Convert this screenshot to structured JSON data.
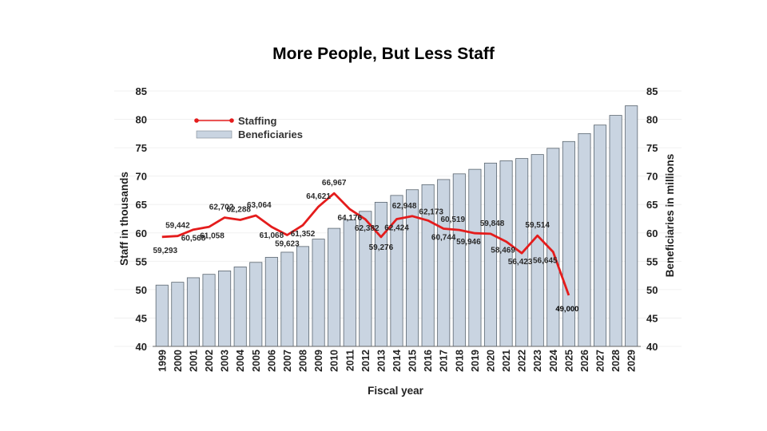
{
  "chart_data": {
    "type": "bar",
    "title": "More People, But Less Staff",
    "xlabel": "Fiscal year",
    "ylabel_left": "Staff in thousands",
    "ylabel_right": "Beneficiaries in millions",
    "ylim": [
      40,
      85
    ],
    "yticks": [
      40,
      45,
      50,
      55,
      60,
      65,
      70,
      75,
      80,
      85
    ],
    "legend_position": "top-left",
    "categories": [
      "1999",
      "2000",
      "2001",
      "2002",
      "2003",
      "2004",
      "2005",
      "2006",
      "2007",
      "2008",
      "2009",
      "2010",
      "2011",
      "2012",
      "2013",
      "2014",
      "2015",
      "2016",
      "2017",
      "2018",
      "2019",
      "2020",
      "2021",
      "2022",
      "2023",
      "2024",
      "2025",
      "2026",
      "2027",
      "2028",
      "2029"
    ],
    "series": [
      {
        "name": "Beneficiaries",
        "type": "bar",
        "axis": "right",
        "color": "#c9d4e1",
        "values": [
          50.8,
          51.3,
          52.1,
          52.7,
          53.3,
          54.0,
          54.8,
          55.7,
          56.6,
          57.6,
          58.9,
          60.8,
          62.3,
          63.8,
          65.4,
          66.6,
          67.6,
          68.5,
          69.4,
          70.4,
          71.2,
          72.3,
          72.7,
          73.1,
          73.8,
          74.9,
          76.1,
          77.5,
          79.0,
          80.7,
          82.4
        ]
      },
      {
        "name": "Staffing",
        "type": "line",
        "axis": "left",
        "color": "#e41c1c",
        "x": [
          "1999",
          "2000",
          "2001",
          "2002",
          "2003",
          "2004",
          "2005",
          "2006",
          "2007",
          "2008",
          "2009",
          "2010",
          "2011",
          "2012",
          "2013",
          "2014",
          "2015",
          "2016",
          "2017",
          "2018",
          "2019",
          "2020",
          "2021",
          "2022",
          "2023",
          "2024",
          "2025"
        ],
        "values": [
          59.293,
          59.442,
          60.568,
          61.058,
          62.702,
          62.288,
          63.064,
          61.068,
          59.623,
          61.352,
          64.621,
          66.967,
          64.176,
          62.382,
          59.276,
          62.424,
          62.948,
          62.173,
          60.744,
          60.519,
          59.946,
          59.848,
          58.469,
          56.423,
          59.514,
          56.645,
          49.0
        ],
        "labels": [
          "59,293",
          "59,442",
          "60,568",
          "61,058",
          "62,702",
          "62,288",
          "63,064",
          "61,068",
          "59,623",
          "61,352",
          "64,621",
          "66,967",
          "64,176",
          "62,382",
          "59,276",
          "62,424",
          "62,948",
          "62,173",
          "60,744",
          "60,519",
          "59,946",
          "59,848",
          "58,469",
          "56,423",
          "59,514",
          "56,645",
          "49,000"
        ]
      }
    ]
  }
}
